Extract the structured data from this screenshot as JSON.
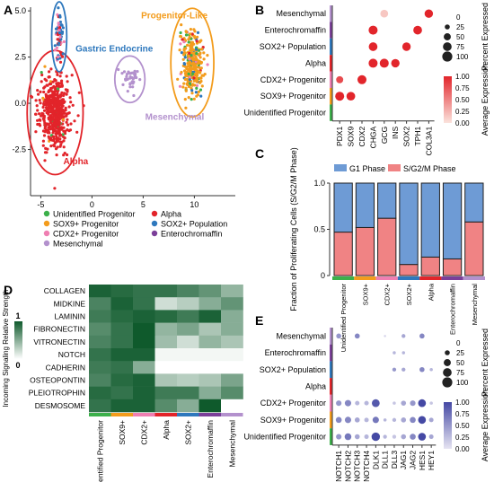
{
  "panels": {
    "A": "A",
    "B": "B",
    "C": "C",
    "D": "D",
    "E": "E"
  },
  "colors": {
    "unidentified": "#3cb04a",
    "sox9": "#f39c1c",
    "cdx2": "#ef7fb2",
    "mes": "#b391cd",
    "alpha": "#e2242a",
    "sox2pop": "#2e78bd",
    "entero": "#7b3f99",
    "dot_low": "#fbe3dd",
    "dot_high": "#e2252b",
    "e_low": "#e6e4f2",
    "e_high": "#4549a4",
    "g1": "#6e9bd5",
    "s": "#f08384",
    "d_low": "#ffffff",
    "d_high": "#0f5a2c"
  },
  "chart_data": [
    {
      "panel": "A",
      "type": "scatter",
      "xlim": [
        -6,
        14
      ],
      "ylim": [
        -5,
        5.2
      ],
      "x_ticks": [
        "-5",
        "0",
        "5",
        "10"
      ],
      "y_ticks": [
        "-2.5",
        "0.0",
        "2.5",
        "5.0"
      ],
      "clusters": [
        {
          "name": "Alpha",
          "color": "alpha",
          "cx": -3.6,
          "cy": -0.5,
          "sx": 1.3,
          "sy": 1.6,
          "n": 520,
          "label": "Alpha"
        },
        {
          "name": "Gastric Endocrine",
          "color": "sox2pop",
          "cx": -3.2,
          "cy": 3.6,
          "sx": 0.35,
          "sy": 0.9,
          "n": 70,
          "label": "Gastric Endocrine"
        },
        {
          "name": "Progenitor-Like",
          "color": "sox9",
          "cx": 9.8,
          "cy": 2.2,
          "sx": 1.0,
          "sy": 1.4,
          "n": 300,
          "label": "Progenitor-Like"
        },
        {
          "name": "Mesenchymal",
          "color": "mes",
          "cx": 3.7,
          "cy": 1.3,
          "sx": 0.7,
          "sy": 0.6,
          "n": 40,
          "label": "Mesenchymal"
        }
      ],
      "legend": [
        {
          "label": "Unidentified Progenitor",
          "color": "unidentified"
        },
        {
          "label": "SOX9+ Progenitor",
          "color": "sox9"
        },
        {
          "label": "CDX2+ Progenitor",
          "color": "cdx2"
        },
        {
          "label": "Mesenchymal",
          "color": "mes"
        },
        {
          "label": "Alpha",
          "color": "alpha"
        },
        {
          "label": "SOX2+ Population",
          "color": "sox2pop"
        },
        {
          "label": "Enterochromaffin",
          "color": "entero"
        }
      ]
    },
    {
      "panel": "B",
      "type": "dot",
      "rows": [
        "Mesenchymal",
        "Enterochromaffin",
        "SOX2+ Population",
        "Alpha",
        "CDX2+ Progenitor",
        "SOX9+ Progenitor",
        "Unidentified Progenitor"
      ],
      "row_colors": [
        "mes",
        "entero",
        "sox2pop",
        "alpha",
        "cdx2",
        "sox9",
        "unidentified"
      ],
      "genes": [
        "PDX1",
        "SOX9",
        "CDX2",
        "CHGA",
        "GCG",
        "INS",
        "SOX2",
        "TPH1",
        "COL3A1"
      ],
      "dots": [
        [
          0,
          4,
          60,
          0.15
        ],
        [
          0,
          8,
          70,
          1.0
        ],
        [
          1,
          3,
          80,
          1.0
        ],
        [
          1,
          7,
          75,
          1.0
        ],
        [
          2,
          3,
          75,
          1.0
        ],
        [
          2,
          6,
          70,
          1.0
        ],
        [
          3,
          3,
          80,
          1.0
        ],
        [
          3,
          4,
          80,
          1.0
        ],
        [
          3,
          5,
          70,
          1.0
        ],
        [
          4,
          0,
          50,
          0.8
        ],
        [
          4,
          2,
          80,
          1.0
        ],
        [
          5,
          0,
          80,
          1.0
        ],
        [
          5,
          1,
          75,
          1.0
        ]
      ],
      "size_legend": {
        "title": "Percent Expressed",
        "values": [
          "0",
          "25",
          "50",
          "75",
          "100"
        ]
      },
      "color_legend": {
        "title": "Average Expression",
        "ticks": [
          "1.00",
          "0.75",
          "0.50",
          "0.25",
          "0.00"
        ]
      }
    },
    {
      "panel": "C",
      "type": "bar",
      "categories": [
        "Unidentified Progenitor",
        "SOX9+",
        "CDX2+",
        "SOX2+",
        "Alpha",
        "Enterochromaffin",
        "Mesenchymal"
      ],
      "cat_colors": [
        "unidentified",
        "sox9",
        "cdx2",
        "sox2pop",
        "alpha",
        "entero",
        "mes"
      ],
      "series": [
        {
          "name": "G1 Phase",
          "values": [
            0.53,
            0.48,
            0.38,
            0.88,
            0.8,
            0.82,
            0.42
          ]
        },
        {
          "name": "S/G2/M Phase",
          "values": [
            0.47,
            0.52,
            0.62,
            0.12,
            0.2,
            0.18,
            0.58
          ]
        }
      ],
      "ylabel": "Fraction of Proliferating Cells (S/G2/M Phase)",
      "ylim": [
        0,
        1
      ],
      "y_ticks": [
        "0",
        "0.5",
        "1.0"
      ]
    },
    {
      "panel": "D",
      "type": "heatmap",
      "rows": [
        "COLLAGEN",
        "MIDKINE",
        "LAMININ",
        "FIBRONECTIN",
        "VITRONECTIN",
        "NOTCH",
        "CADHERIN",
        "OSTEOPONTIN",
        "PLEIOTROPHIN",
        "DESMOSOME"
      ],
      "cols": [
        "Unidentified Progenitor",
        "SOX9+",
        "CDX2+",
        "Alpha",
        "SOX2+",
        "Enterochromaffin",
        "Mesenchymal"
      ],
      "col_colors": [
        "unidentified",
        "sox9",
        "cdx2",
        "alpha",
        "sox2pop",
        "entero",
        "mes"
      ],
      "values": [
        [
          0.95,
          0.9,
          0.85,
          0.85,
          0.75,
          0.65,
          0.45
        ],
        [
          0.75,
          0.95,
          0.85,
          0.2,
          0.3,
          0.5,
          0.65
        ],
        [
          0.8,
          0.9,
          0.95,
          0.9,
          0.8,
          0.95,
          0.5
        ],
        [
          0.7,
          0.85,
          1.0,
          0.45,
          0.55,
          0.35,
          0.5
        ],
        [
          0.75,
          0.85,
          1.0,
          0.4,
          0.2,
          0.45,
          0.35
        ],
        [
          0.85,
          0.95,
          0.95,
          0.05,
          0.05,
          0.05,
          0.05
        ],
        [
          0.8,
          0.85,
          0.5,
          0.0,
          0.0,
          0.0,
          0.0
        ],
        [
          0.75,
          0.9,
          0.95,
          0.35,
          0.3,
          0.35,
          0.55
        ],
        [
          0.9,
          0.85,
          0.95,
          0.8,
          0.8,
          0.5,
          0.7
        ],
        [
          0.85,
          0.95,
          0.95,
          0.7,
          0.5,
          1.0,
          0.0
        ]
      ],
      "scale_label": "Incoming Signaling Relative Strength",
      "scale_ticks": [
        "1",
        "0"
      ]
    },
    {
      "panel": "E",
      "type": "dot",
      "rows": [
        "Mesenchymal",
        "Enterochromaffin",
        "SOX2+ Population",
        "Alpha",
        "CDX2+ Progenitor",
        "SOX9+ Progenitor",
        "Unidentified Progenitor"
      ],
      "row_colors": [
        "mes",
        "entero",
        "sox2pop",
        "alpha",
        "cdx2",
        "sox9",
        "unidentified"
      ],
      "genes": [
        "NOTCH1",
        "NOTCH2",
        "NOTCH3",
        "NOTCH4",
        "DLK1",
        "DLL1",
        "DLL3",
        "JAG1",
        "JAG2",
        "HES1",
        "HEY1"
      ],
      "dots": [
        [
          0,
          0,
          25,
          0.5
        ],
        [
          0,
          2,
          25,
          0.6
        ],
        [
          0,
          5,
          5,
          0.1
        ],
        [
          0,
          7,
          15,
          0.4
        ],
        [
          0,
          9,
          25,
          0.6
        ],
        [
          1,
          6,
          10,
          0.3
        ],
        [
          1,
          7,
          10,
          0.3
        ],
        [
          2,
          6,
          15,
          0.5
        ],
        [
          2,
          7,
          15,
          0.4
        ],
        [
          2,
          9,
          25,
          0.6
        ],
        [
          2,
          10,
          10,
          0.3
        ],
        [
          4,
          0,
          30,
          0.5
        ],
        [
          4,
          1,
          40,
          0.6
        ],
        [
          4,
          2,
          20,
          0.3
        ],
        [
          4,
          3,
          20,
          0.3
        ],
        [
          4,
          4,
          60,
          0.9
        ],
        [
          4,
          6,
          10,
          0.2
        ],
        [
          4,
          7,
          25,
          0.4
        ],
        [
          4,
          8,
          30,
          0.5
        ],
        [
          4,
          9,
          60,
          1.0
        ],
        [
          4,
          10,
          10,
          0.2
        ],
        [
          5,
          0,
          35,
          0.6
        ],
        [
          5,
          1,
          40,
          0.6
        ],
        [
          5,
          2,
          25,
          0.4
        ],
        [
          5,
          3,
          20,
          0.3
        ],
        [
          5,
          4,
          40,
          0.7
        ],
        [
          5,
          5,
          10,
          0.3
        ],
        [
          5,
          6,
          15,
          0.3
        ],
        [
          5,
          7,
          25,
          0.4
        ],
        [
          5,
          8,
          35,
          0.6
        ],
        [
          5,
          9,
          60,
          1.0
        ],
        [
          5,
          10,
          20,
          0.4
        ],
        [
          6,
          0,
          30,
          0.5
        ],
        [
          6,
          1,
          45,
          0.7
        ],
        [
          6,
          2,
          25,
          0.4
        ],
        [
          6,
          3,
          20,
          0.3
        ],
        [
          6,
          4,
          70,
          1.0
        ],
        [
          6,
          5,
          15,
          0.3
        ],
        [
          6,
          6,
          15,
          0.2
        ],
        [
          6,
          7,
          25,
          0.4
        ],
        [
          6,
          8,
          35,
          0.6
        ],
        [
          6,
          9,
          60,
          1.0
        ],
        [
          6,
          10,
          20,
          0.4
        ]
      ],
      "size_legend": {
        "title": "Percent Expressed",
        "values": [
          "0",
          "25",
          "50",
          "75",
          "100"
        ]
      },
      "color_legend": {
        "title": "Average Expression",
        "ticks": [
          "1.00",
          "0.75",
          "0.50",
          "0.25",
          "0.00"
        ]
      }
    }
  ]
}
